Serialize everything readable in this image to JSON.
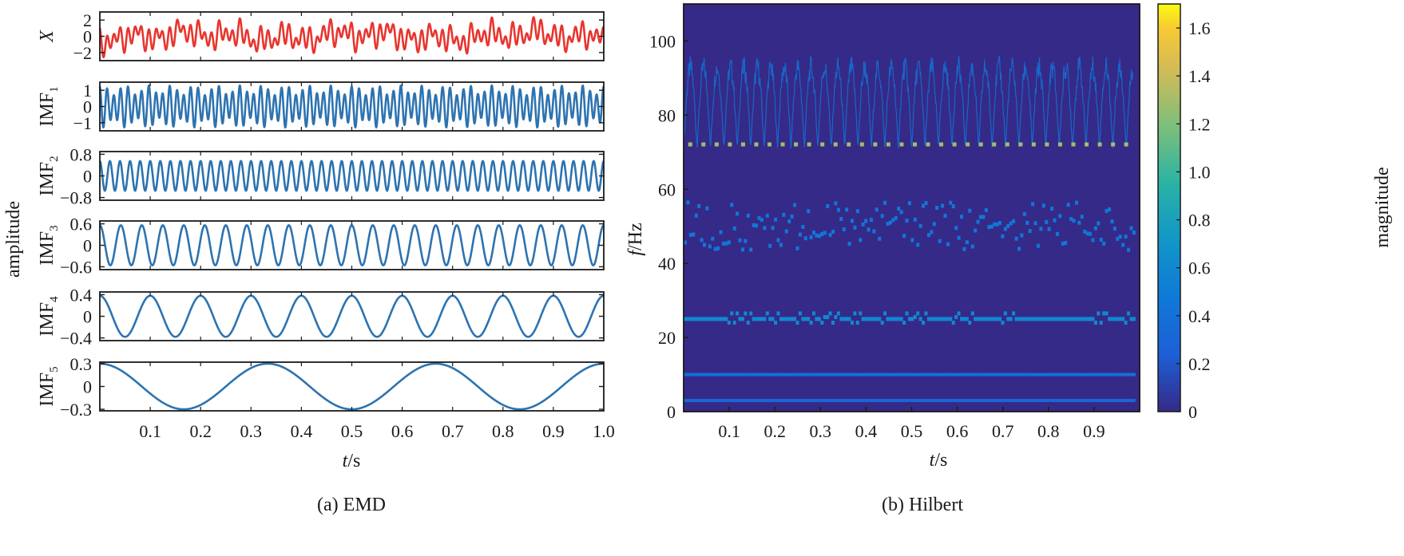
{
  "captions": {
    "left": "(a) EMD",
    "right": "(b) Hilbert"
  },
  "left_ylabel": "amplitude",
  "xlabel": {
    "var": "t",
    "unit": "/s"
  },
  "right_ylabel": {
    "var": "f",
    "unit": "/Hz"
  },
  "colorbar_label": "magnitude",
  "colors": {
    "signal": "#e8352e",
    "imf": "#2d73b0",
    "axis": "#1a1a1a"
  },
  "chart_data": [
    {
      "type": "line",
      "title": "(a) EMD",
      "xlabel": "t/s",
      "ylabel": "amplitude",
      "xlim": [
        0,
        1
      ],
      "x_ticks": [
        "0.1",
        "0.2",
        "0.3",
        "0.4",
        "0.5",
        "0.6",
        "0.7",
        "0.8",
        "0.9",
        "1.0"
      ],
      "panels": [
        {
          "name": "X",
          "label_main": "X",
          "label_sub": "",
          "italic": true,
          "ylim": [
            -3,
            3
          ],
          "yticks": [
            "2",
            "0",
            "−2"
          ],
          "tick_values": [
            2,
            0,
            -2
          ],
          "components": [
            {
              "amp": 1.0,
              "freq": 72
            },
            {
              "amp": 0.55,
              "freq": 50
            },
            {
              "amp": 0.55,
              "freq": 24
            },
            {
              "amp": 0.38,
              "freq": 10
            },
            {
              "amp": 0.3,
              "freq": 3
            }
          ],
          "color": "signal"
        },
        {
          "name": "IMF1",
          "label_main": "IMF",
          "label_sub": "1",
          "italic": false,
          "ylim": [
            -1.5,
            1.5
          ],
          "yticks": [
            "1",
            "0",
            "−1"
          ],
          "tick_values": [
            1,
            0,
            -1
          ],
          "components": [
            {
              "amp": 1.0,
              "freq": 72
            },
            {
              "amp": 0.3,
              "freq": 50
            }
          ],
          "color": "imf"
        },
        {
          "name": "IMF2",
          "label_main": "IMF",
          "label_sub": "2",
          "italic": false,
          "ylim": [
            -0.9,
            0.9
          ],
          "yticks": [
            "0.8",
            "0",
            "−0.8"
          ],
          "tick_values": [
            0.8,
            0,
            -0.8
          ],
          "components": [
            {
              "amp": 0.55,
              "freq": 50
            }
          ],
          "color": "imf"
        },
        {
          "name": "IMF3",
          "label_main": "IMF",
          "label_sub": "3",
          "italic": false,
          "ylim": [
            -0.68,
            0.68
          ],
          "yticks": [
            "0.6",
            "0",
            "−0.6"
          ],
          "tick_values": [
            0.6,
            0,
            -0.6
          ],
          "components": [
            {
              "amp": 0.56,
              "freq": 24
            }
          ],
          "color": "imf"
        },
        {
          "name": "IMF4",
          "label_main": "IMF",
          "label_sub": "4",
          "italic": false,
          "ylim": [
            -0.45,
            0.45
          ],
          "yticks": [
            "0.4",
            "0",
            "−0.4"
          ],
          "tick_values": [
            0.4,
            0,
            -0.4
          ],
          "components": [
            {
              "amp": 0.38,
              "freq": 10
            }
          ],
          "color": "imf"
        },
        {
          "name": "IMF5",
          "label_main": "IMF",
          "label_sub": "5",
          "italic": false,
          "ylim": [
            -0.32,
            0.32
          ],
          "yticks": [
            "0.3",
            "0",
            "−0.3"
          ],
          "tick_values": [
            0.3,
            0,
            -0.3
          ],
          "components": [
            {
              "amp": 0.3,
              "freq": 3
            }
          ],
          "color": "imf"
        }
      ]
    },
    {
      "type": "heatmap",
      "title": "(b) Hilbert",
      "xlabel": "t/s",
      "ylabel": "f/Hz",
      "xlim": [
        0,
        1
      ],
      "ylim": [
        0,
        110
      ],
      "x_ticks": [
        "0.1",
        "0.2",
        "0.3",
        "0.4",
        "0.5",
        "0.6",
        "0.7",
        "0.8",
        "0.9"
      ],
      "y_ticks": [
        "0",
        "20",
        "40",
        "60",
        "80",
        "100"
      ],
      "y_tick_values": [
        0,
        20,
        40,
        60,
        80,
        100
      ],
      "colormap": "parula",
      "colorbar": {
        "label": "magnitude",
        "range": [
          0,
          1.7
        ],
        "ticks": [
          "0",
          "0.2",
          "0.4",
          "0.6",
          "0.8",
          "1.0",
          "1.2",
          "1.4",
          "1.6"
        ],
        "tick_values": [
          0,
          0.2,
          0.4,
          0.6,
          0.8,
          1.0,
          1.2,
          1.4,
          1.6
        ]
      },
      "bands": [
        {
          "component": "IMF1",
          "center_hz": 72,
          "range_hz": [
            71,
            96
          ],
          "magnitude": 1.3
        },
        {
          "component": "IMF2",
          "center_hz": 50,
          "range_hz": [
            43,
            56
          ],
          "magnitude": 0.45
        },
        {
          "component": "IMF3",
          "center_hz": 25,
          "range_hz": [
            23,
            29
          ],
          "magnitude": 0.6
        },
        {
          "component": "IMF4",
          "center_hz": 10,
          "range_hz": [
            9,
            11
          ],
          "magnitude": 0.4
        },
        {
          "component": "IMF5",
          "center_hz": 3,
          "range_hz": [
            2,
            4
          ],
          "magnitude": 0.3
        }
      ]
    }
  ]
}
